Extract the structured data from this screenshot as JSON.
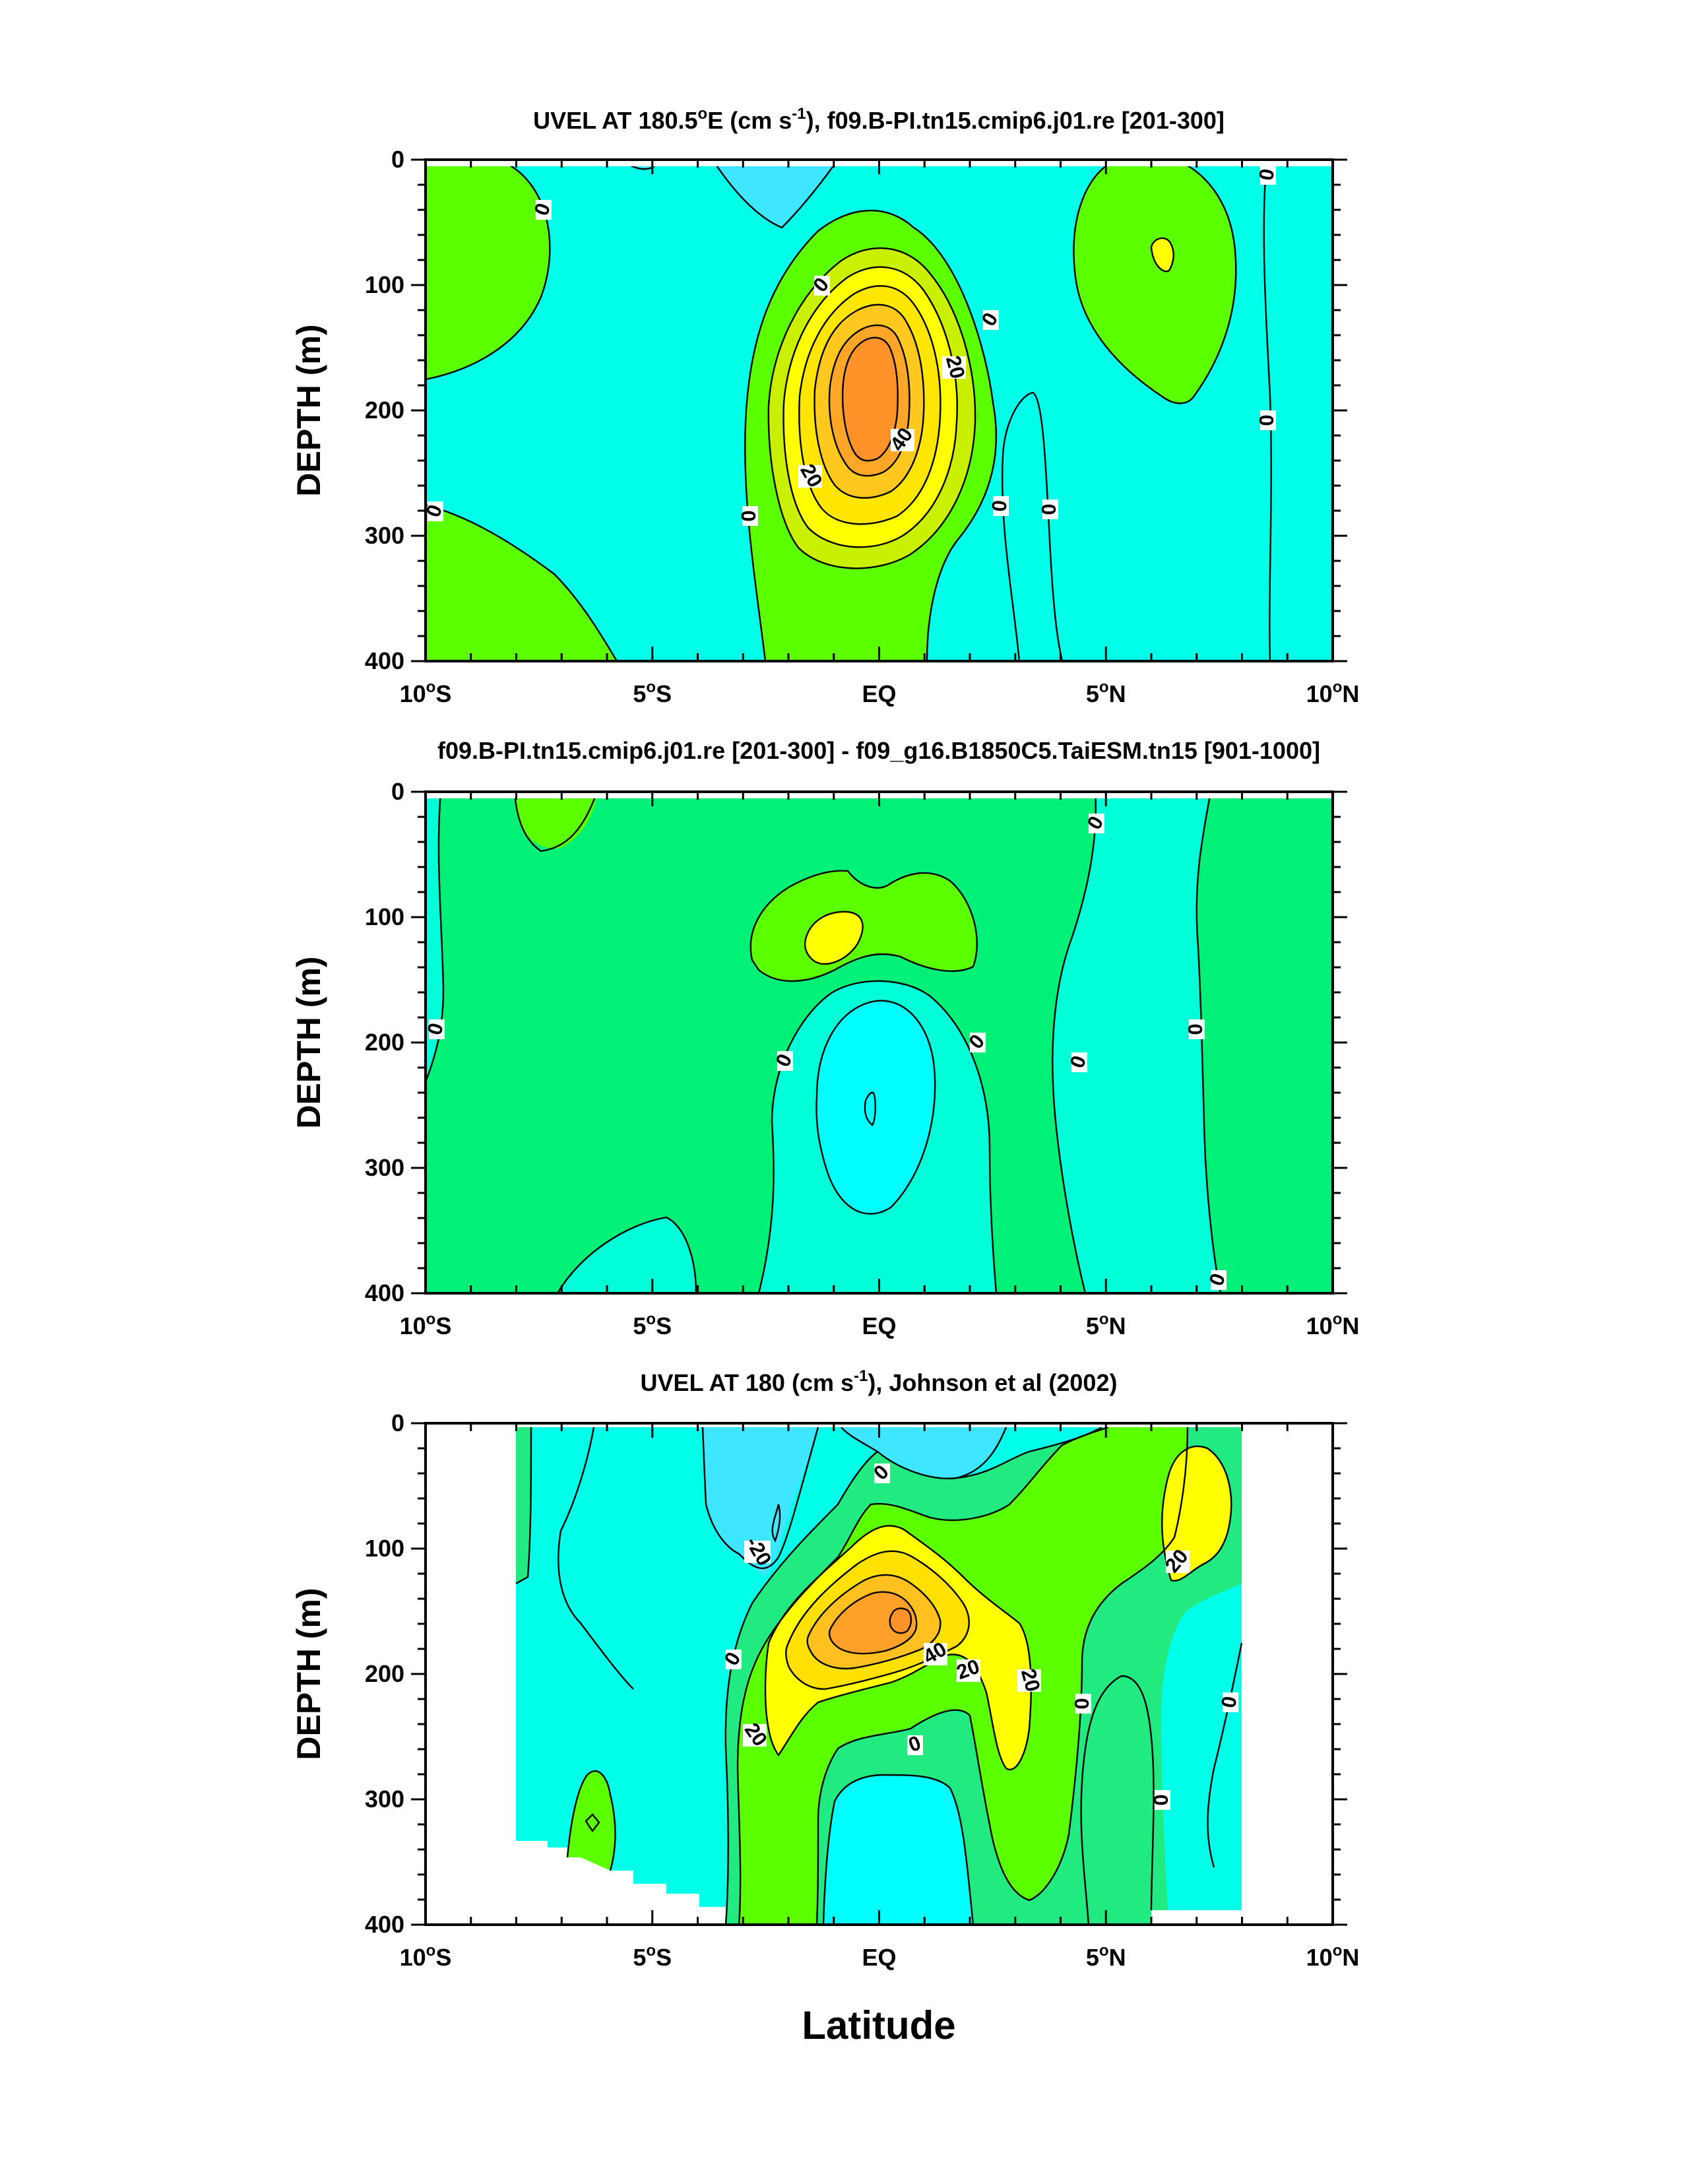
{
  "figure": {
    "xlabel": "Latitude",
    "x_ticks": [
      {
        "value": -10,
        "label_main": "10",
        "label_sup": "o",
        "label_end": "S"
      },
      {
        "value": -5,
        "label_main": "5",
        "label_sup": "o",
        "label_end": "S"
      },
      {
        "value": 0,
        "label_main": "EQ",
        "label_sup": "",
        "label_end": ""
      },
      {
        "value": 5,
        "label_main": "5",
        "label_sup": "o",
        "label_end": "N"
      },
      {
        "value": 10,
        "label_main": "10",
        "label_sup": "o",
        "label_end": "N"
      }
    ],
    "y_ticks": [
      "0",
      "100",
      "200",
      "300",
      "400"
    ],
    "ylabel": "DEPTH (m)"
  },
  "panels": [
    {
      "title_parts": [
        "UVEL AT 180.5",
        "o",
        "E (cm s",
        "-1",
        "), f09.B-PI.tn15.cmip6.j01.re [201-300]"
      ],
      "contour_labels": [
        "0",
        "0",
        "0",
        "0",
        "0",
        "20",
        "40",
        "20",
        "0",
        "0",
        "0",
        "0",
        "0"
      ]
    },
    {
      "title_parts": [
        "f09.B-PI.tn15.cmip6.j01.re [201-300] - f09_g16.B1850C5.TaiESM.tn15 [901-1000]",
        "",
        "",
        "",
        ""
      ],
      "contour_labels": [
        "0",
        "0",
        "0",
        "0",
        "0",
        "0",
        "0",
        "0",
        "0"
      ]
    },
    {
      "title_parts": [
        "UVEL AT 180 (cm s",
        "-1",
        "), Johnson et al (2002)",
        "",
        ""
      ],
      "contour_labels": [
        "-20",
        "0",
        "0",
        "20",
        "40",
        "20",
        "20",
        "0",
        "0",
        "0",
        "0",
        "20"
      ]
    }
  ],
  "chart_data": [
    {
      "type": "heatmap",
      "plot_style": "filled contour",
      "variable": "UVEL",
      "x_range_deg": [
        -10,
        10
      ],
      "y_range_m": [
        0,
        400
      ],
      "y_reversed": true,
      "contour_interval": 10,
      "contour_line_labels": [
        0,
        20,
        40
      ],
      "color_by_level": {
        "-20": "#3ee6ff",
        "-10": "#00ffe8",
        "0": "#20ea80",
        "10": "#5cff00",
        "20": "#ffff00",
        "30": "#ffe000",
        "40": "#ffc020",
        "50": "#ff9a28"
      },
      "features": [
        {
          "feature": "eastward core max",
          "lat": 0,
          "depth": 165,
          "value": 50
        }
      ]
    },
    {
      "type": "heatmap",
      "plot_style": "filled contour",
      "variable": "UVEL difference",
      "x_range_deg": [
        -10,
        10
      ],
      "y_range_m": [
        0,
        400
      ],
      "y_reversed": true,
      "contour_interval": 10,
      "contour_line_labels": [
        0
      ],
      "color_by_level": {
        "-20": "#00ffff",
        "-10": "#00ffd8",
        "0": "#00f078",
        "10": "#5cff00",
        "20": "#ffff00"
      },
      "features": [
        {
          "feature": "positive max",
          "lat": -1.2,
          "depth": 120,
          "value": 20
        },
        {
          "feature": "negative min",
          "lat": 0,
          "depth": 250,
          "value": -20
        }
      ]
    },
    {
      "type": "heatmap",
      "plot_style": "filled contour",
      "variable": "UVEL observed",
      "x_range_deg": [
        -10,
        10
      ],
      "y_range_m": [
        0,
        400
      ],
      "y_reversed": true,
      "data_lat_range": [
        -8,
        8
      ],
      "contour_interval": 10,
      "contour_line_labels": [
        -20,
        0,
        20,
        40
      ],
      "color_by_level": {
        "-20": "#3ee6ff",
        "-10": "#00ffe8",
        "0": "#20ea80",
        "10": "#5cff00",
        "20": "#ffff00",
        "30": "#ffe000",
        "40": "#ffc020",
        "50": "#ff9a28"
      },
      "features": [
        {
          "feature": "eastward core max",
          "lat": 0.6,
          "depth": 165,
          "value": 50
        },
        {
          "feature": "off-equator max",
          "lat": 6.3,
          "depth": 90,
          "value": 20
        }
      ]
    }
  ]
}
